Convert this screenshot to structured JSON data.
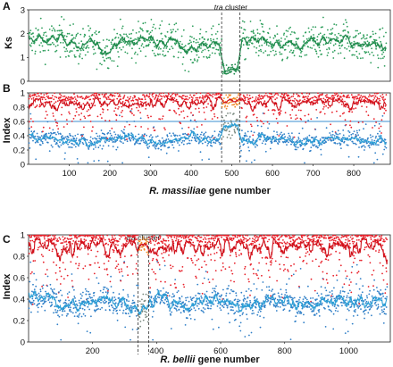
{
  "colors": {
    "ks": "#2e9e5c",
    "ks_line": "#1f8a4c",
    "red": "#e8202a",
    "red_line": "#d0101a",
    "blue": "#2f7fc7",
    "blue_line": "#2b9fd6",
    "orange": "#f08a2a",
    "gray": "#7a8a80",
    "hline": "#3b8fd2"
  },
  "chart_data": [
    {
      "type": "scatter",
      "panel": "A",
      "ylabel": "Ks",
      "xlim": [
        0,
        890
      ],
      "ylim": [
        0,
        3
      ],
      "yticks": [
        "0",
        "1",
        "2",
        "3"
      ],
      "yticks_values": [
        0,
        1,
        2,
        3
      ],
      "grid": false,
      "annotation": {
        "italic": "tra",
        "text": " cluster"
      },
      "cluster_bounds": [
        475,
        520
      ],
      "series": [
        {
          "role": "points",
          "n": 890,
          "baseline": 1.6,
          "cluster_value": 0.3,
          "range": [
            0.1,
            2.95
          ]
        },
        {
          "role": "moving-average",
          "baseline": 1.6,
          "cluster_value": 0.3
        }
      ]
    },
    {
      "type": "scatter",
      "panel": "B",
      "ylabel": "Index",
      "xlabel_italic": "R. massiliae",
      "xlabel_rest": " gene number",
      "xlim": [
        0,
        890
      ],
      "ylim": [
        0,
        1
      ],
      "yticks": [
        "0",
        "0.2",
        "0.4",
        "0.6",
        "0.8",
        "1"
      ],
      "yticks_values": [
        0,
        0.2,
        0.4,
        0.6,
        0.8,
        1
      ],
      "xticks": [
        "100",
        "200",
        "300",
        "400",
        "500",
        "600",
        "700",
        "800"
      ],
      "xticks_values": [
        100,
        200,
        300,
        400,
        500,
        600,
        700,
        800
      ],
      "reference_line": 0.6,
      "cluster_bounds": [
        475,
        520
      ],
      "series": [
        {
          "role": "upper-points",
          "baseline": 0.94,
          "cluster_value": 0.88
        },
        {
          "role": "upper-moving-average",
          "baseline": 0.94
        },
        {
          "role": "lower-points",
          "baseline": 0.34,
          "cluster_value": 0.56
        },
        {
          "role": "lower-moving-average",
          "baseline": 0.34
        }
      ]
    },
    {
      "type": "scatter",
      "panel": "C",
      "ylabel": "Index",
      "xlabel_italic": "R. bellii",
      "xlabel_rest": " gene number",
      "xlim": [
        0,
        1130
      ],
      "ylim": [
        0,
        1
      ],
      "yticks": [
        "0",
        "0.2",
        "0.4",
        "0.6",
        "0.8",
        "1"
      ],
      "yticks_values": [
        0,
        0.2,
        0.4,
        0.6,
        0.8,
        1
      ],
      "xticks": [
        "200",
        "400",
        "600",
        "800",
        "1000"
      ],
      "xticks_values": [
        200,
        400,
        600,
        800,
        1000
      ],
      "annotation": {
        "italic": "tra",
        "text": " cluster"
      },
      "cluster_bounds": [
        342,
        375
      ],
      "series": [
        {
          "role": "upper-points",
          "baseline": 0.97,
          "cluster_value": 0.9
        },
        {
          "role": "upper-moving-average",
          "baseline": 0.97
        },
        {
          "role": "lower-points",
          "baseline": 0.37,
          "cluster_value": 0.34
        },
        {
          "role": "lower-moving-average",
          "baseline": 0.37
        }
      ]
    }
  ]
}
